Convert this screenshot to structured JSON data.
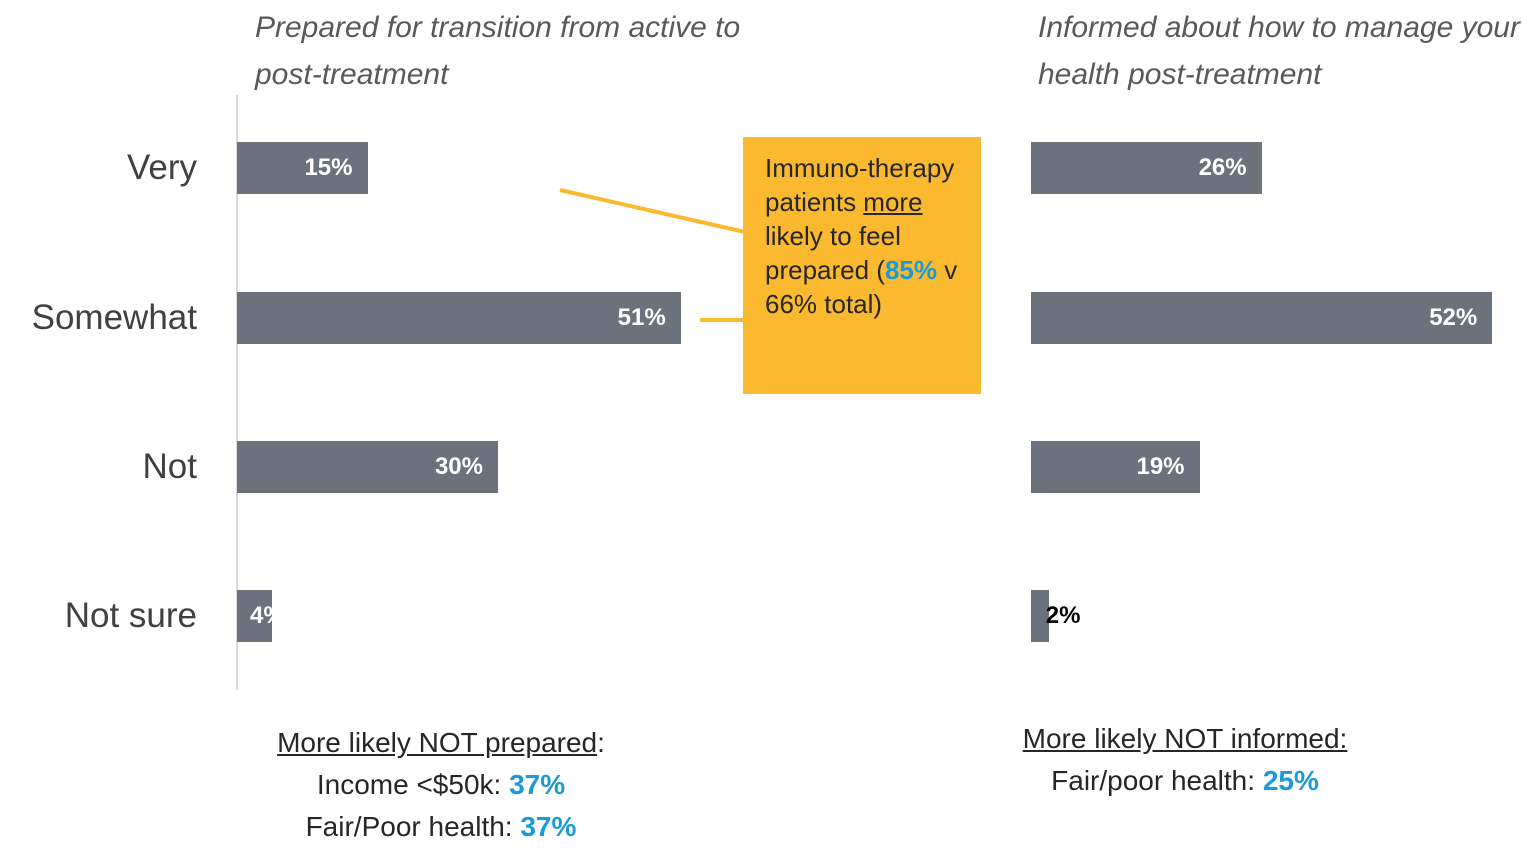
{
  "chart_data": [
    {
      "type": "bar",
      "orientation": "horizontal",
      "title": "Prepared for transition from active to post-treatment",
      "categories": [
        "Very",
        "Somewhat",
        "Not",
        "Not sure"
      ],
      "values": [
        15,
        51,
        30,
        4
      ],
      "value_labels": [
        "15%",
        "51%",
        "30%",
        "4%"
      ],
      "color": "#6b727b",
      "annotation": {
        "parts": [
          "Immuno-therapy patients ",
          "more",
          " likely to feel prepared (",
          "85%",
          " v 66% total)"
        ]
      },
      "note": {
        "heading": [
          "More likely NOT prepared",
          ":"
        ],
        "items": [
          {
            "label": "Income <$50k: ",
            "value": "37%"
          },
          {
            "label": "Fair/Poor health: ",
            "value": "37%"
          }
        ]
      }
    },
    {
      "type": "bar",
      "orientation": "horizontal",
      "title": "Informed about how to manage your health post-treatment",
      "categories": [
        null,
        null,
        null,
        null
      ],
      "values": [
        26,
        52,
        19,
        2
      ],
      "value_labels": [
        "26%",
        "52%",
        "19%",
        "2%"
      ],
      "color": "#6b727b",
      "note": {
        "heading": [
          "More likely NOT informed:"
        ],
        "items": [
          {
            "label": "Fair/poor health: ",
            "value": "25%"
          }
        ]
      }
    }
  ]
}
